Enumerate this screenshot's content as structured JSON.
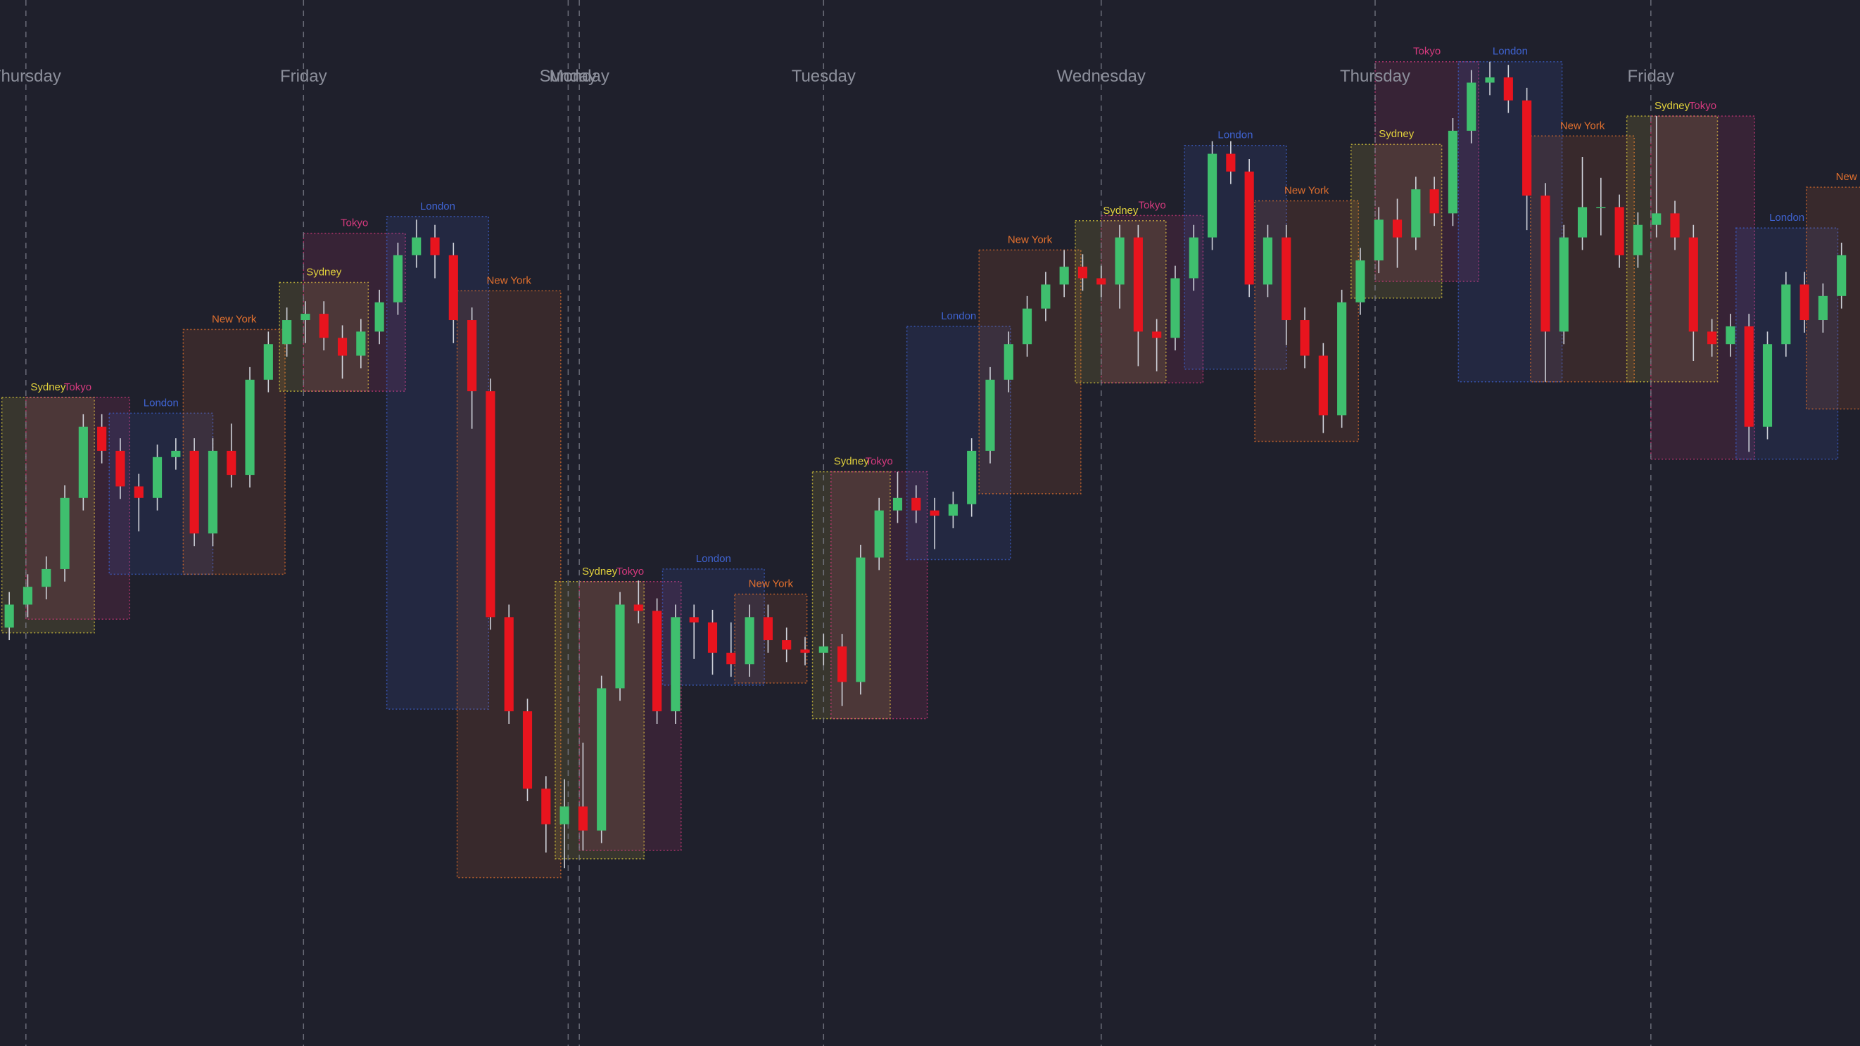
{
  "chart_data": {
    "type": "candlestick",
    "xlim": [
      -0.5,
      100
    ],
    "ylim": [
      0,
      100
    ],
    "up_color": "#3fbf6e",
    "down_color": "#e8141e",
    "wick_color": "#cfd2da",
    "background": "#1f202c",
    "days": [
      {
        "label": "Thursday",
        "x": 0.9
      },
      {
        "label": "Friday",
        "x": 15.9
      },
      {
        "label": "Sunday",
        "x": 30.2
      },
      {
        "label": "Monday",
        "x": 30.8
      },
      {
        "label": "Tuesday",
        "x": 44.0
      },
      {
        "label": "Wednesday",
        "x": 59.0
      },
      {
        "label": "Thursday",
        "x": 73.8
      },
      {
        "label": "Friday",
        "x": 88.7
      }
    ],
    "sessions": [
      {
        "name": "Sydney",
        "color": "#e3d23c",
        "start": -0.4,
        "end": 4.6,
        "high": 62.0,
        "low": 39.5
      },
      {
        "name": "Tokyo",
        "color": "#d63a7e",
        "start": 0.9,
        "end": 6.5,
        "high": 62.0,
        "low": 40.8
      },
      {
        "name": "London",
        "color": "#3f63d1",
        "start": 5.4,
        "end": 11.0,
        "high": 60.5,
        "low": 45.1
      },
      {
        "name": "New York",
        "color": "#e2702e",
        "start": 9.4,
        "end": 14.9,
        "high": 68.5,
        "low": 45.1
      },
      {
        "name": "Sydney",
        "color": "#e3d23c",
        "start": 14.6,
        "end": 19.4,
        "high": 73.0,
        "low": 62.6
      },
      {
        "name": "Tokyo",
        "color": "#d63a7e",
        "start": 15.9,
        "end": 21.4,
        "high": 77.7,
        "low": 62.6
      },
      {
        "name": "London",
        "color": "#3f63d1",
        "start": 20.4,
        "end": 25.9,
        "high": 79.3,
        "low": 32.2
      },
      {
        "name": "New York",
        "color": "#e2702e",
        "start": 24.2,
        "end": 29.8,
        "high": 72.2,
        "low": 16.1
      },
      {
        "name": "Sydney",
        "color": "#e3d23c",
        "start": 29.5,
        "end": 34.3,
        "high": 44.4,
        "low": 17.9
      },
      {
        "name": "Tokyo",
        "color": "#d63a7e",
        "start": 30.8,
        "end": 36.3,
        "high": 44.4,
        "low": 18.7
      },
      {
        "name": "London",
        "color": "#3f63d1",
        "start": 35.3,
        "end": 40.8,
        "high": 45.6,
        "low": 34.5
      },
      {
        "name": "New York",
        "color": "#e2702e",
        "start": 39.2,
        "end": 43.1,
        "high": 43.2,
        "low": 34.7
      },
      {
        "name": "Sydney",
        "color": "#e3d23c",
        "start": 43.4,
        "end": 47.6,
        "high": 54.9,
        "low": 31.3
      },
      {
        "name": "Tokyo",
        "color": "#d63a7e",
        "start": 44.4,
        "end": 49.6,
        "high": 54.9,
        "low": 31.3
      },
      {
        "name": "London",
        "color": "#3f63d1",
        "start": 48.5,
        "end": 54.1,
        "high": 68.8,
        "low": 46.5
      },
      {
        "name": "New York",
        "color": "#e2702e",
        "start": 52.4,
        "end": 57.9,
        "high": 76.1,
        "low": 52.8
      },
      {
        "name": "Sydney",
        "color": "#e3d23c",
        "start": 57.6,
        "end": 62.5,
        "high": 78.9,
        "low": 63.4
      },
      {
        "name": "Tokyo",
        "color": "#d63a7e",
        "start": 59.0,
        "end": 64.5,
        "high": 79.4,
        "low": 63.4
      },
      {
        "name": "London",
        "color": "#3f63d1",
        "start": 63.5,
        "end": 69.0,
        "high": 86.1,
        "low": 64.7
      },
      {
        "name": "New York",
        "color": "#e2702e",
        "start": 67.3,
        "end": 72.9,
        "high": 80.8,
        "low": 57.8
      },
      {
        "name": "Sydney",
        "color": "#e3d23c",
        "start": 72.5,
        "end": 77.4,
        "high": 86.2,
        "low": 71.5
      },
      {
        "name": "Tokyo",
        "color": "#d63a7e",
        "start": 73.8,
        "end": 79.4,
        "high": 94.1,
        "low": 73.1
      },
      {
        "name": "London",
        "color": "#3f63d1",
        "start": 78.3,
        "end": 83.9,
        "high": 94.1,
        "low": 63.5
      },
      {
        "name": "New York",
        "color": "#e2702e",
        "start": 82.2,
        "end": 87.8,
        "high": 87.0,
        "low": 63.5
      },
      {
        "name": "Sydney",
        "color": "#e3d23c",
        "start": 87.4,
        "end": 92.3,
        "high": 88.9,
        "low": 63.5
      },
      {
        "name": "Tokyo",
        "color": "#d63a7e",
        "start": 88.7,
        "end": 94.3,
        "high": 88.9,
        "low": 56.1
      },
      {
        "name": "London",
        "color": "#3f63d1",
        "start": 93.3,
        "end": 98.8,
        "high": 78.2,
        "low": 56.1
      },
      {
        "name": "New York",
        "color": "#e2702e",
        "start": 97.1,
        "end": 102.7,
        "high": 82.1,
        "low": 60.9
      }
    ],
    "open": [
      40.0,
      42.2,
      43.9,
      45.6,
      52.4,
      59.2,
      56.9,
      53.5,
      52.4,
      56.3,
      56.9,
      49.0,
      56.9,
      54.6,
      63.7,
      67.1,
      69.4,
      70.0,
      67.7,
      66.0,
      68.3,
      71.1,
      75.6,
      77.3,
      75.6,
      69.4,
      62.6,
      41.0,
      32.0,
      24.6,
      21.2,
      22.9,
      20.6,
      34.2,
      42.2,
      41.6,
      32.0,
      41.0,
      40.5,
      37.6,
      36.5,
      41.0,
      38.8,
      37.9,
      37.6,
      38.2,
      34.8,
      46.7,
      51.2,
      52.4,
      51.2,
      50.7,
      51.8,
      56.9,
      63.7,
      67.1,
      70.5,
      72.8,
      74.5,
      73.4,
      72.8,
      77.3,
      68.3,
      67.7,
      73.4,
      77.3,
      85.3,
      83.6,
      72.8,
      77.3,
      69.4,
      66.0,
      60.3,
      71.1,
      75.1,
      79.0,
      77.3,
      81.9,
      79.6,
      87.5,
      92.1,
      92.6,
      90.4,
      81.3,
      68.3,
      77.3,
      80.2,
      80.2,
      75.6,
      78.5,
      79.6,
      77.3,
      68.3,
      67.1,
      68.8,
      59.2,
      67.1,
      72.8,
      69.4,
      71.7
    ],
    "high": [
      43.4,
      45.1,
      46.8,
      53.6,
      60.4,
      60.4,
      58.1,
      54.7,
      57.5,
      58.1,
      58.1,
      58.1,
      59.5,
      64.9,
      68.3,
      70.6,
      71.2,
      71.2,
      68.9,
      69.5,
      72.3,
      76.8,
      79.0,
      78.5,
      76.8,
      70.6,
      63.8,
      42.2,
      33.2,
      25.8,
      25.5,
      29.0,
      35.4,
      43.4,
      44.5,
      42.8,
      42.2,
      42.2,
      41.7,
      40.5,
      42.2,
      42.2,
      40.0,
      39.1,
      39.4,
      39.4,
      47.9,
      52.4,
      54.9,
      53.6,
      52.4,
      53.0,
      58.1,
      64.9,
      68.3,
      71.7,
      74.0,
      76.1,
      75.7,
      74.6,
      78.5,
      78.5,
      69.5,
      74.6,
      78.5,
      86.5,
      86.5,
      84.8,
      78.5,
      78.5,
      70.6,
      67.2,
      72.3,
      76.3,
      80.2,
      81.0,
      83.1,
      83.1,
      88.7,
      93.3,
      94.1,
      93.8,
      91.6,
      82.5,
      78.5,
      85.0,
      83.0,
      81.4,
      79.7,
      88.9,
      80.8,
      78.5,
      69.5,
      70.0,
      70.0,
      68.3,
      74.0,
      74.0,
      72.9,
      76.8
    ],
    "low": [
      38.8,
      41.0,
      42.7,
      44.4,
      51.2,
      55.7,
      52.3,
      49.2,
      51.2,
      55.1,
      47.8,
      47.8,
      53.4,
      53.4,
      62.5,
      65.9,
      67.2,
      66.5,
      63.8,
      64.8,
      67.1,
      69.9,
      74.4,
      73.4,
      67.2,
      59.0,
      39.8,
      30.8,
      23.4,
      18.5,
      17.0,
      18.7,
      19.4,
      33.0,
      40.4,
      30.8,
      30.8,
      37.0,
      35.5,
      35.3,
      35.3,
      37.6,
      36.7,
      36.4,
      36.4,
      32.5,
      33.6,
      45.5,
      50.0,
      50.0,
      47.5,
      49.5,
      50.6,
      55.7,
      62.5,
      65.9,
      69.3,
      71.6,
      72.2,
      71.6,
      70.5,
      65.0,
      64.5,
      66.5,
      72.2,
      76.1,
      82.4,
      71.6,
      71.6,
      67.0,
      64.8,
      58.6,
      59.1,
      69.9,
      73.9,
      74.4,
      76.1,
      78.4,
      78.4,
      86.3,
      90.9,
      89.2,
      78.0,
      63.5,
      67.1,
      76.1,
      77.5,
      74.4,
      74.4,
      77.3,
      76.1,
      65.5,
      65.9,
      65.9,
      56.8,
      58.0,
      65.9,
      68.2,
      68.2,
      70.5
    ],
    "close": [
      42.2,
      43.9,
      45.6,
      52.4,
      59.2,
      56.9,
      53.5,
      52.4,
      56.3,
      56.9,
      49.0,
      56.9,
      54.6,
      63.7,
      67.1,
      69.4,
      70.0,
      67.7,
      66.0,
      68.3,
      71.1,
      75.6,
      77.3,
      75.6,
      69.4,
      62.6,
      41.0,
      32.0,
      24.6,
      21.2,
      22.9,
      20.6,
      34.2,
      42.2,
      41.6,
      32.0,
      41.0,
      40.5,
      37.6,
      36.5,
      41.0,
      38.8,
      37.9,
      37.6,
      38.2,
      34.8,
      46.7,
      51.2,
      52.4,
      51.2,
      50.7,
      51.8,
      56.9,
      63.7,
      67.1,
      70.5,
      72.8,
      74.5,
      73.4,
      72.8,
      77.3,
      68.3,
      67.7,
      73.4,
      77.3,
      85.3,
      83.6,
      72.8,
      77.3,
      69.4,
      66.0,
      60.3,
      71.1,
      75.1,
      79.0,
      77.3,
      81.9,
      79.6,
      87.5,
      92.1,
      92.6,
      90.4,
      81.3,
      68.3,
      77.3,
      80.2,
      80.2,
      75.6,
      78.5,
      79.6,
      77.3,
      68.3,
      67.1,
      68.8,
      59.2,
      67.1,
      72.8,
      69.4,
      71.7,
      75.6
    ]
  }
}
